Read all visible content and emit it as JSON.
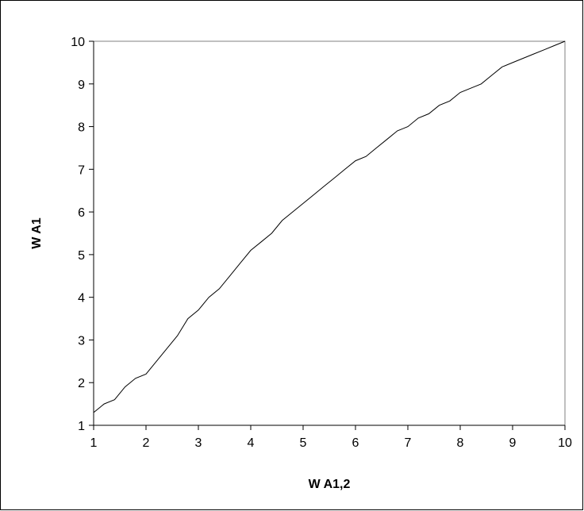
{
  "chart_data": {
    "type": "line",
    "title": "",
    "xlabel": "W A1,2",
    "ylabel": "W A1",
    "xlim": [
      1,
      10
    ],
    "ylim": [
      1,
      10
    ],
    "xticks": [
      "1",
      "2",
      "3",
      "4",
      "5",
      "6",
      "7",
      "8",
      "9",
      "10"
    ],
    "yticks": [
      "1",
      "2",
      "3",
      "4",
      "5",
      "6",
      "7",
      "8",
      "9",
      "10"
    ],
    "grid": false,
    "legend": "none",
    "series": [
      {
        "color": "#000000",
        "x": [
          1.0,
          1.2,
          1.4,
          1.6,
          1.8,
          2.0,
          2.2,
          2.4,
          2.6,
          2.8,
          3.0,
          3.2,
          3.4,
          3.6,
          3.8,
          4.0,
          4.2,
          4.4,
          4.6,
          4.8,
          5.0,
          5.2,
          5.4,
          5.6,
          5.8,
          6.0,
          6.2,
          6.4,
          6.6,
          6.8,
          7.0,
          7.2,
          7.4,
          7.6,
          7.8,
          8.0,
          8.2,
          8.4,
          8.6,
          8.8,
          9.0,
          9.2,
          9.4,
          9.6,
          9.8,
          10.0
        ],
        "y": [
          1.3,
          1.5,
          1.6,
          1.9,
          2.1,
          2.2,
          2.5,
          2.8,
          3.1,
          3.5,
          3.7,
          4.0,
          4.2,
          4.5,
          4.8,
          5.1,
          5.3,
          5.5,
          5.8,
          6.0,
          6.2,
          6.4,
          6.6,
          6.8,
          7.0,
          7.2,
          7.3,
          7.5,
          7.7,
          7.9,
          8.0,
          8.2,
          8.3,
          8.5,
          8.6,
          8.8,
          8.9,
          9.0,
          9.2,
          9.4,
          9.5,
          9.6,
          9.7,
          9.8,
          9.9,
          10.0
        ]
      }
    ]
  }
}
